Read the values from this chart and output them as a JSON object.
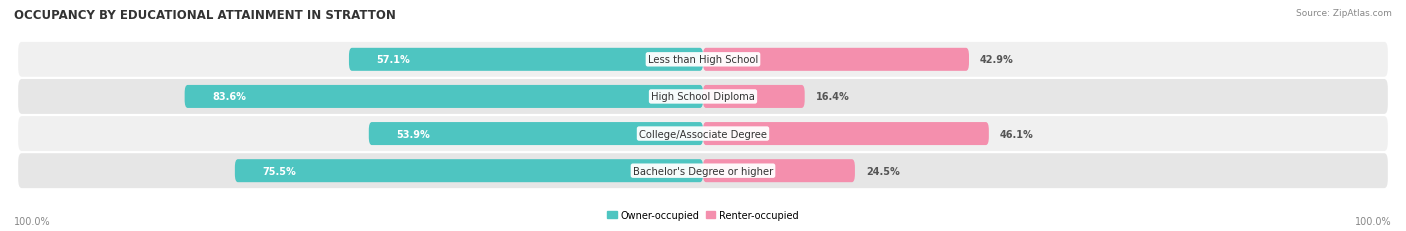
{
  "title": "OCCUPANCY BY EDUCATIONAL ATTAINMENT IN STRATTON",
  "source": "Source: ZipAtlas.com",
  "categories": [
    "Less than High School",
    "High School Diploma",
    "College/Associate Degree",
    "Bachelor's Degree or higher"
  ],
  "owner_pct": [
    57.1,
    83.6,
    53.9,
    75.5
  ],
  "renter_pct": [
    42.9,
    16.4,
    46.1,
    24.5
  ],
  "owner_color": "#4ec5c1",
  "renter_color": "#f48fad",
  "row_bg_colors": [
    "#f0f0f0",
    "#e6e6e6",
    "#f0f0f0",
    "#e6e6e6"
  ],
  "title_color": "#333333",
  "legend_owner": "Owner-occupied",
  "legend_renter": "Renter-occupied",
  "left_axis_label": "100.0%",
  "right_axis_label": "100.0%",
  "figsize": [
    14.06,
    2.32
  ],
  "dpi": 100
}
